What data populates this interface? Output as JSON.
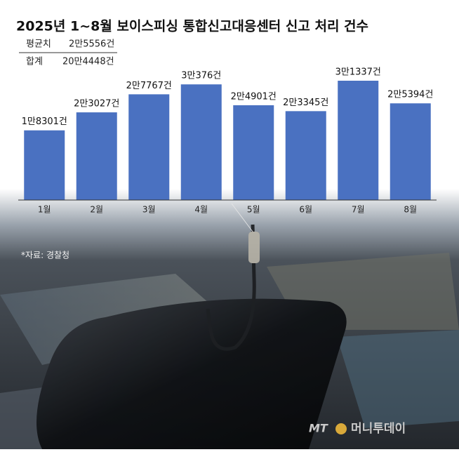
{
  "chart_data": {
    "type": "bar",
    "title": "2025년 1~8월 보이스피싱 통합신고대응센터 신고 처리 건수",
    "stats": [
      {
        "label": "평균치",
        "text": "2만5556건"
      },
      {
        "label": "합계",
        "text": "20만4448건"
      }
    ],
    "categories": [
      "1월",
      "2월",
      "3월",
      "4월",
      "5월",
      "6월",
      "7월",
      "8월"
    ],
    "values": [
      18301,
      23027,
      27767,
      30376,
      24901,
      23345,
      31337,
      25394
    ],
    "value_labels": [
      "1만8301건",
      "2만3027건",
      "2만7767건",
      "3만376건",
      "2만4901건",
      "2만3345건",
      "3만1337건",
      "2만5394건"
    ],
    "color": "#4a71c1",
    "source": "*자료: 경찰청",
    "logo_mark": "MT",
    "logo_text": "머니투데이"
  }
}
